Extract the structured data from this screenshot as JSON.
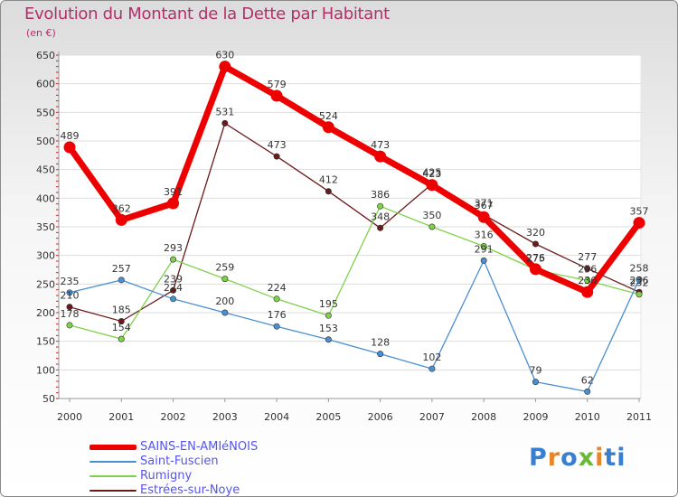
{
  "chart_data": {
    "type": "line",
    "title": "Evolution du Montant de la Dette par Habitant",
    "subtitle": "(en €)",
    "xlabel": "",
    "ylabel": "",
    "x": [
      "2000",
      "2001",
      "2002",
      "2003",
      "2004",
      "2005",
      "2006",
      "2007",
      "2008",
      "2009",
      "2010",
      "2011"
    ],
    "ylim": [
      50,
      650
    ],
    "yticks": [
      50,
      100,
      150,
      200,
      250,
      300,
      350,
      400,
      450,
      500,
      550,
      600,
      650
    ],
    "grid": "horizontal",
    "legend_position": "bottom-left",
    "series": [
      {
        "name": "SAINS-EN-AMIéNOIS",
        "color": "#ee0000",
        "values": [
          489,
          362,
          391,
          630,
          579,
          524,
          473,
          423,
          367,
          276,
          236,
          357
        ]
      },
      {
        "name": "Saint-Fuscien",
        "color": "#4a8fd0",
        "values": [
          235,
          257,
          224,
          200,
          176,
          153,
          128,
          102,
          291,
          79,
          62,
          258
        ]
      },
      {
        "name": "Rumigny",
        "color": "#7ed24a",
        "values": [
          178,
          154,
          293,
          259,
          224,
          195,
          386,
          350,
          316,
          275,
          256,
          232
        ]
      },
      {
        "name": "Estrées-sur-Noye",
        "color": "#6b1a1a",
        "values": [
          210,
          185,
          239,
          531,
          473,
          412,
          348,
          425,
          371,
          320,
          277,
          236
        ]
      }
    ]
  },
  "brand": {
    "letters": [
      "P",
      "r",
      "o",
      "x",
      "i",
      "t",
      "i"
    ]
  }
}
